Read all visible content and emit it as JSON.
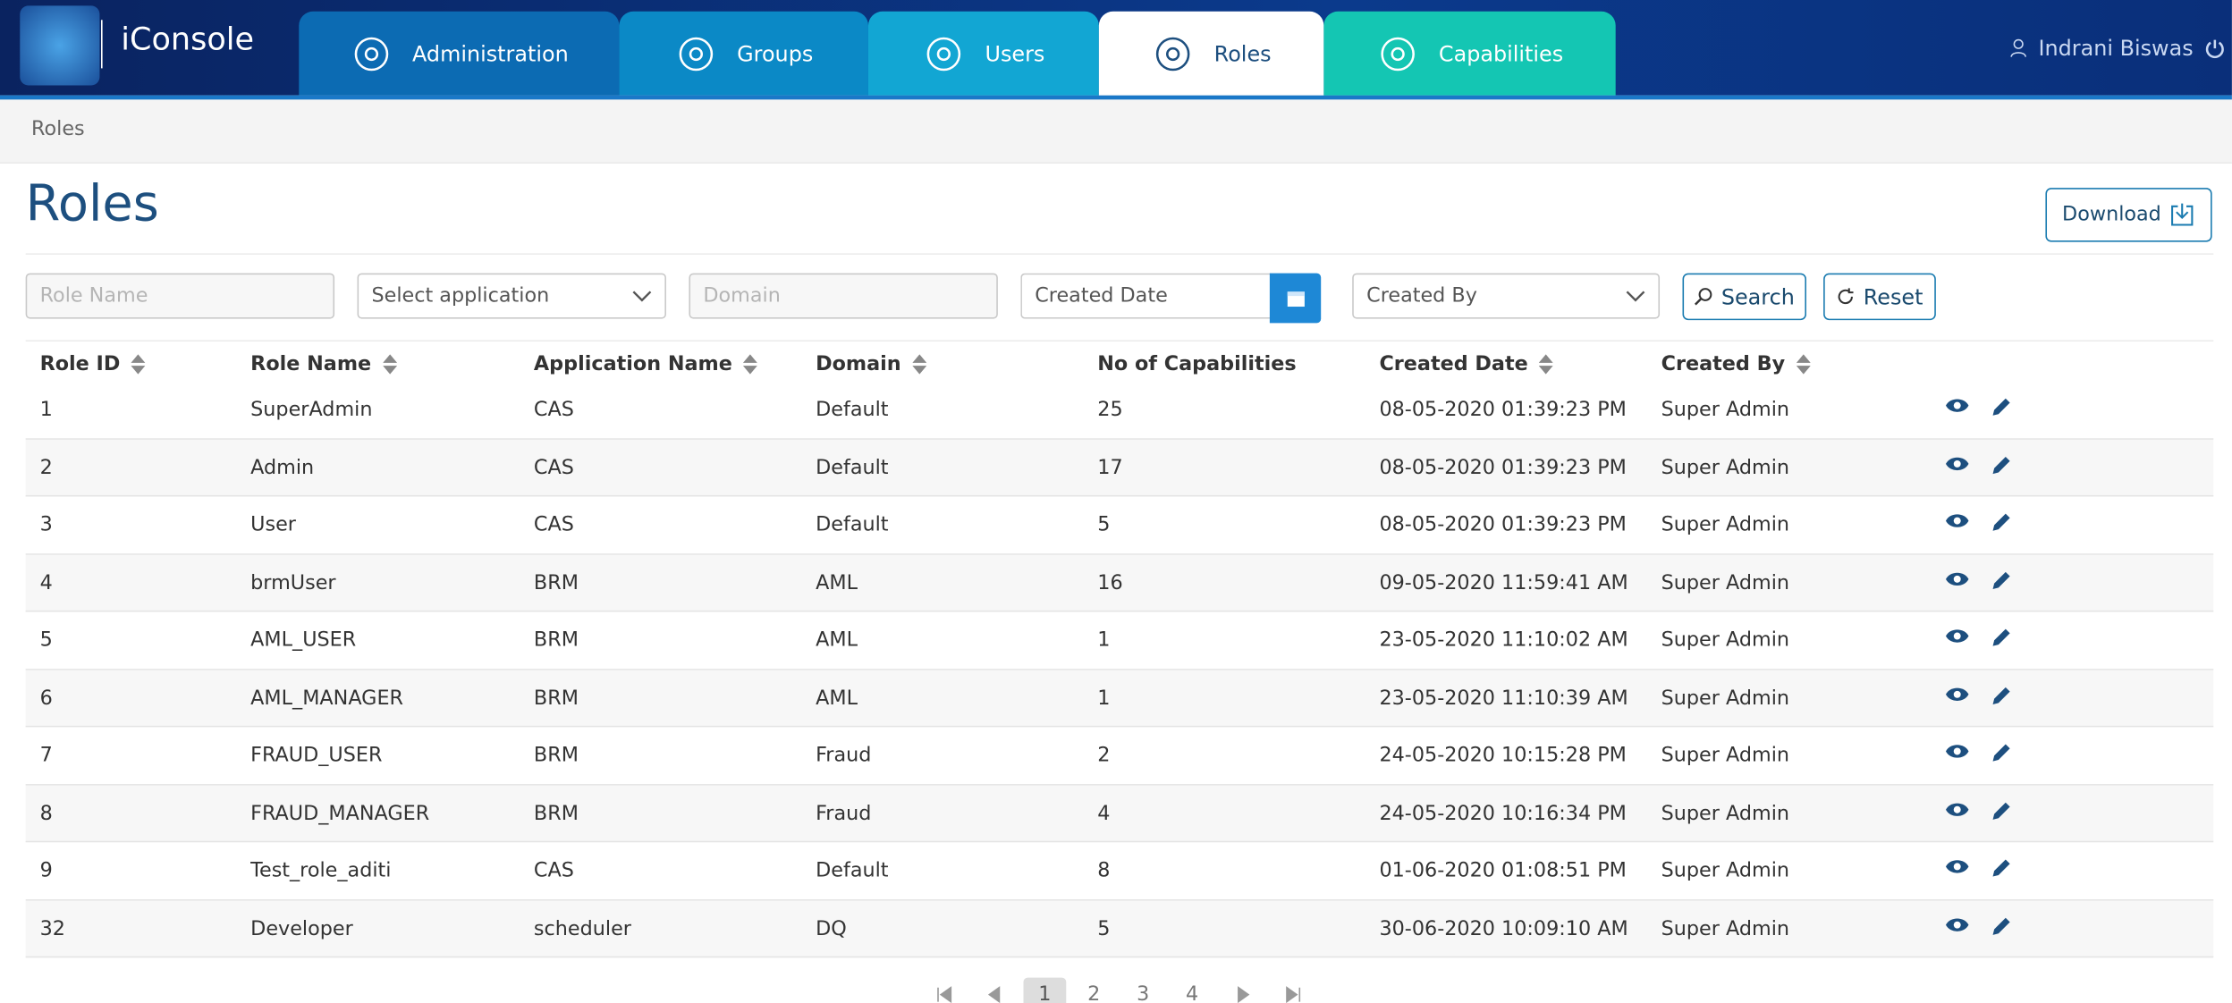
{
  "header": {
    "app_name": "iConsole",
    "tabs": [
      "Administration",
      "Groups",
      "Users",
      "Roles",
      "Capabilities"
    ],
    "user": "Indrani Biswas"
  },
  "breadcrumb": "Roles",
  "page": {
    "title": "Roles",
    "download": "Download"
  },
  "filters": {
    "role_name": "Role Name",
    "application": "Select application",
    "domain": "Domain",
    "created_date": "Created Date",
    "created_by": "Created By",
    "search": "Search",
    "reset": "Reset"
  },
  "table": {
    "columns": [
      "Role ID",
      "Role Name",
      "Application Name",
      "Domain",
      "No of Capabilities",
      "Created Date",
      "Created By"
    ],
    "sortable": [
      true,
      true,
      true,
      true,
      false,
      true,
      true
    ],
    "rows": [
      [
        "1",
        "SuperAdmin",
        "CAS",
        "Default",
        "25",
        "08-05-2020 01:39:23 PM",
        "Super Admin"
      ],
      [
        "2",
        "Admin",
        "CAS",
        "Default",
        "17",
        "08-05-2020 01:39:23 PM",
        "Super Admin"
      ],
      [
        "3",
        "User",
        "CAS",
        "Default",
        "5",
        "08-05-2020 01:39:23 PM",
        "Super Admin"
      ],
      [
        "4",
        "brmUser",
        "BRM",
        "AML",
        "16",
        "09-05-2020 11:59:41 AM",
        "Super Admin"
      ],
      [
        "5",
        "AML_USER",
        "BRM",
        "AML",
        "1",
        "23-05-2020 11:10:02 AM",
        "Super Admin"
      ],
      [
        "6",
        "AML_MANAGER",
        "BRM",
        "AML",
        "1",
        "23-05-2020 11:10:39 AM",
        "Super Admin"
      ],
      [
        "7",
        "FRAUD_USER",
        "BRM",
        "Fraud",
        "2",
        "24-05-2020 10:15:28 PM",
        "Super Admin"
      ],
      [
        "8",
        "FRAUD_MANAGER",
        "BRM",
        "Fraud",
        "4",
        "24-05-2020 10:16:34 PM",
        "Super Admin"
      ],
      [
        "9",
        "Test_role_aditi",
        "CAS",
        "Default",
        "8",
        "01-06-2020 01:08:51 PM",
        "Super Admin"
      ],
      [
        "32",
        "Developer",
        "scheduler",
        "DQ",
        "5",
        "30-06-2020 10:09:10 AM",
        "Super Admin"
      ]
    ]
  },
  "pagination": {
    "pages": [
      "1",
      "2",
      "3",
      "4"
    ]
  }
}
